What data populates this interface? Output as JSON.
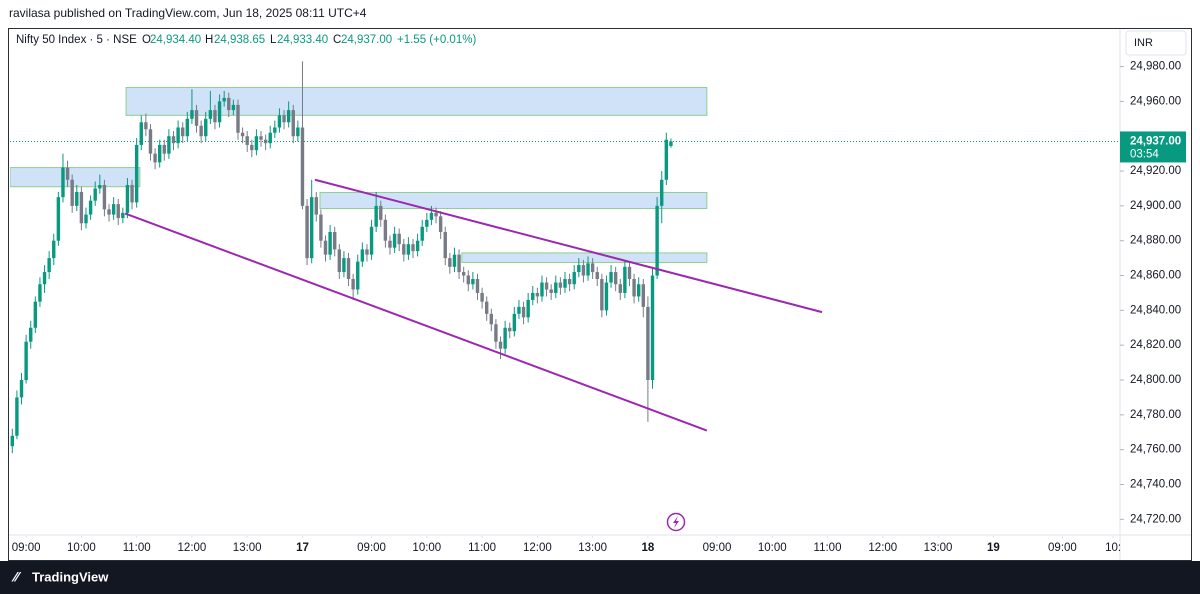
{
  "header": {
    "text": "ravilasa published on TradingView.com, Jun 18, 2025 08:11 UTC+4"
  },
  "footer": {
    "brand": "TradingView"
  },
  "chart_data": {
    "type": "candlestick",
    "legend": {
      "symbol": "Nifty 50 Index · 5 · NSE",
      "o": "O",
      "open": "24,934.40",
      "h": "H",
      "high": "24,938.65",
      "l": "L",
      "low": "24,933.40",
      "c": "C",
      "close": "24,937.00",
      "change": "+1.55 (+0.01%)"
    },
    "currency": "INR",
    "up_color": "#089981",
    "down_color": "#787b86",
    "xlim": [
      -0.5,
      240.5
    ],
    "xticks": [
      {
        "value": 3,
        "label": "09:00"
      },
      {
        "value": 15,
        "label": "10:00"
      },
      {
        "value": 27,
        "label": "11:00"
      },
      {
        "value": 39,
        "label": "12:00"
      },
      {
        "value": 51,
        "label": "13:00"
      },
      {
        "value": 63,
        "label": "17"
      },
      {
        "value": 78,
        "label": "09:00"
      },
      {
        "value": 90,
        "label": "10:00"
      },
      {
        "value": 102,
        "label": "11:00"
      },
      {
        "value": 114,
        "label": "12:00"
      },
      {
        "value": 126,
        "label": "13:00"
      },
      {
        "value": 138,
        "label": "18"
      },
      {
        "value": 153,
        "label": "09:00"
      },
      {
        "value": 165,
        "label": "10:00"
      },
      {
        "value": 177,
        "label": "11:00"
      },
      {
        "value": 189,
        "label": "12:00"
      },
      {
        "value": 201,
        "label": "13:00"
      },
      {
        "value": 213,
        "label": "19"
      },
      {
        "value": 228,
        "label": "09:00"
      },
      {
        "value": 239,
        "label": "10:"
      }
    ],
    "ylim": [
      24711,
      25001
    ],
    "yticks": [
      {
        "value": 24720,
        "label": "24,720.00"
      },
      {
        "value": 24740,
        "label": "24,740.00"
      },
      {
        "value": 24760,
        "label": "24,760.00"
      },
      {
        "value": 24780,
        "label": "24,780.00"
      },
      {
        "value": 24800,
        "label": "24,800.00"
      },
      {
        "value": 24820,
        "label": "24,820.00"
      },
      {
        "value": 24840,
        "label": "24,840.00"
      },
      {
        "value": 24860,
        "label": "24,860.00"
      },
      {
        "value": 24880,
        "label": "24,880.00"
      },
      {
        "value": 24900,
        "label": "24,900.00"
      },
      {
        "value": 24920,
        "label": "24,920.00"
      },
      {
        "value": 24960,
        "label": "24,960.00"
      },
      {
        "value": 24980,
        "label": "24,980.00"
      }
    ],
    "last_price": {
      "value": 24937,
      "label": "24,937.00",
      "countdown": "03:54",
      "color": "#089981"
    },
    "zones": [
      {
        "x": [
          24.7,
          150.8
        ],
        "y": [
          24952,
          24968
        ]
      },
      {
        "x": [
          -0.5,
          27.7
        ],
        "y": [
          24911,
          24922
        ]
      },
      {
        "x": [
          66.8,
          150.8
        ],
        "y": [
          24898.5,
          24907.7
        ]
      },
      {
        "x": [
          97.6,
          150.8
        ],
        "y": [
          24867.5,
          24873
        ]
      }
    ],
    "zone_fill": "#cfe2f8",
    "zone_stroke": "#8fcf8f",
    "trendlines": [
      {
        "x": [
          24.5,
          150.8
        ],
        "y": [
          24895.6,
          24771
        ]
      },
      {
        "x": [
          65.7,
          175.8
        ],
        "y": [
          24915,
          24839
        ]
      }
    ],
    "trend_color": "#9c27b0",
    "candles": [
      [
        24762,
        24772,
        24758,
        24768
      ],
      [
        24768,
        24794,
        24766,
        24790
      ],
      [
        24790,
        24804,
        24786,
        24800
      ],
      [
        24800,
        24826,
        24798,
        24822
      ],
      [
        24822,
        24834,
        24818,
        24830
      ],
      [
        24830,
        24848,
        24827,
        24845
      ],
      [
        24845,
        24859,
        24842,
        24855
      ],
      [
        24855,
        24866,
        24850,
        24862
      ],
      [
        24862,
        24874,
        24858,
        24870
      ],
      [
        24870,
        24884,
        24866,
        24880
      ],
      [
        24880,
        24908,
        24877,
        24905
      ],
      [
        24905,
        24930,
        24902,
        24922
      ],
      [
        24922,
        24926,
        24911,
        24915
      ],
      [
        24915,
        24918,
        24896,
        24900
      ],
      [
        24900,
        24912,
        24897,
        24908
      ],
      [
        24908,
        24911,
        24886,
        24890
      ],
      [
        24890,
        24899,
        24887,
        24895
      ],
      [
        24895,
        24906,
        24892,
        24903
      ],
      [
        24903,
        24914,
        24900,
        24910
      ],
      [
        24910,
        24918,
        24907,
        24912
      ],
      [
        24912,
        24915,
        24894,
        24898
      ],
      [
        24898,
        24901,
        24891,
        24895
      ],
      [
        24895,
        24905,
        24892,
        24901
      ],
      [
        24901,
        24904,
        24889,
        24893
      ],
      [
        24893,
        24899,
        24890,
        24896
      ],
      [
        24896,
        24916,
        24893,
        24912
      ],
      [
        24912,
        24915,
        24898,
        24902
      ],
      [
        24902,
        24939,
        24899,
        24935
      ],
      [
        24935,
        24952,
        24932,
        24948
      ],
      [
        24948,
        24953,
        24940,
        24944
      ],
      [
        24944,
        24947,
        24926,
        24930
      ],
      [
        24930,
        24933,
        24921,
        24925
      ],
      [
        24925,
        24938,
        24922,
        24935
      ],
      [
        24935,
        24938,
        24926,
        24930
      ],
      [
        24930,
        24944,
        24927,
        24940
      ],
      [
        24940,
        24943,
        24932,
        24936
      ],
      [
        24936,
        24949,
        24933,
        24945
      ],
      [
        24945,
        24948,
        24936,
        24940
      ],
      [
        24940,
        24954,
        24937,
        24950
      ],
      [
        24950,
        24967,
        24947,
        24955
      ],
      [
        24955,
        24958,
        24942,
        24946
      ],
      [
        24946,
        24949,
        24936,
        24940
      ],
      [
        24940,
        24954,
        24937,
        24950
      ],
      [
        24950,
        24966,
        24947,
        24955
      ],
      [
        24955,
        24958,
        24944,
        24948
      ],
      [
        24948,
        24964,
        24945,
        24960
      ],
      [
        24960,
        24966,
        24957,
        24962
      ],
      [
        24962,
        24965,
        24951,
        24955
      ],
      [
        24955,
        24961,
        24952,
        24958
      ],
      [
        24958,
        24961,
        24938,
        24942
      ],
      [
        24942,
        24945,
        24936,
        24940
      ],
      [
        24940,
        24943,
        24931,
        24935
      ],
      [
        24935,
        24938,
        24928,
        24932
      ],
      [
        24932,
        24944,
        24929,
        24940
      ],
      [
        24940,
        24943,
        24934,
        24938
      ],
      [
        24938,
        24941,
        24932,
        24936
      ],
      [
        24936,
        24946,
        24933,
        24942
      ],
      [
        24942,
        24949,
        24939,
        24945
      ],
      [
        24945,
        24956,
        24942,
        24952
      ],
      [
        24952,
        24955,
        24944,
        24948
      ],
      [
        24948,
        24960,
        24945,
        24955
      ],
      [
        24955,
        24958,
        24936,
        24940
      ],
      [
        24940,
        24949,
        24937,
        24945
      ],
      [
        24945,
        24983,
        24898,
        24900
      ],
      [
        24900,
        24904,
        24866,
        24870
      ],
      [
        24870,
        24915,
        24867,
        24905
      ],
      [
        24905,
        24908,
        24891,
        24895
      ],
      [
        24895,
        24898,
        24876,
        24880
      ],
      [
        24880,
        24883,
        24868,
        24872
      ],
      [
        24872,
        24889,
        24869,
        24885
      ],
      [
        24885,
        24888,
        24871,
        24875
      ],
      [
        24875,
        24878,
        24858,
        24862
      ],
      [
        24862,
        24874,
        24859,
        24870
      ],
      [
        24870,
        24873,
        24854,
        24858
      ],
      [
        24858,
        24861,
        24846,
        24852
      ],
      [
        24852,
        24872,
        24849,
        24868
      ],
      [
        24868,
        24879,
        24865,
        24875
      ],
      [
        24875,
        24878,
        24868,
        24872
      ],
      [
        24872,
        24892,
        24869,
        24888
      ],
      [
        24888,
        24908,
        24885,
        24900
      ],
      [
        24900,
        24903,
        24888,
        24892
      ],
      [
        24892,
        24895,
        24876,
        24880
      ],
      [
        24880,
        24883,
        24872,
        24876
      ],
      [
        24876,
        24888,
        24873,
        24884
      ],
      [
        24884,
        24887,
        24874,
        24878
      ],
      [
        24878,
        24881,
        24868,
        24872
      ],
      [
        24872,
        24882,
        24869,
        24878
      ],
      [
        24878,
        24881,
        24870,
        24874
      ],
      [
        24874,
        24884,
        24871,
        24880
      ],
      [
        24880,
        24892,
        24877,
        24888
      ],
      [
        24888,
        24896,
        24885,
        24892
      ],
      [
        24892,
        24900,
        24889,
        24896
      ],
      [
        24896,
        24899,
        24890,
        24894
      ],
      [
        24894,
        24897,
        24881,
        24885
      ],
      [
        24885,
        24888,
        24866,
        24870
      ],
      [
        24870,
        24873,
        24861,
        24865
      ],
      [
        24865,
        24876,
        24862,
        24872
      ],
      [
        24872,
        24875,
        24858,
        24862
      ],
      [
        24862,
        24865,
        24856,
        24860
      ],
      [
        24860,
        24863,
        24851,
        24855
      ],
      [
        24855,
        24862,
        24852,
        24858
      ],
      [
        24858,
        24861,
        24846,
        24850
      ],
      [
        24850,
        24853,
        24841,
        24845
      ],
      [
        24845,
        24848,
        24834,
        24838
      ],
      [
        24838,
        24841,
        24828,
        24832
      ],
      [
        24832,
        24835,
        24818,
        24822
      ],
      [
        24822,
        24825,
        24812,
        24818
      ],
      [
        24818,
        24834,
        24815,
        24830
      ],
      [
        24830,
        24833,
        24824,
        24828
      ],
      [
        24828,
        24842,
        24825,
        24838
      ],
      [
        24838,
        24846,
        24835,
        24842
      ],
      [
        24842,
        24845,
        24832,
        24836
      ],
      [
        24836,
        24850,
        24833,
        24846
      ],
      [
        24846,
        24854,
        24843,
        24850
      ],
      [
        24850,
        24853,
        24844,
        24848
      ],
      [
        24848,
        24860,
        24845,
        24856
      ],
      [
        24856,
        24859,
        24848,
        24852
      ],
      [
        24852,
        24855,
        24846,
        24850
      ],
      [
        24850,
        24860,
        24847,
        24856
      ],
      [
        24856,
        24859,
        24849,
        24853
      ],
      [
        24853,
        24862,
        24850,
        24858
      ],
      [
        24858,
        24861,
        24851,
        24855
      ],
      [
        24855,
        24866,
        24852,
        24862
      ],
      [
        24862,
        24870,
        24859,
        24866
      ],
      [
        24866,
        24869,
        24856,
        24860
      ],
      [
        24860,
        24871,
        24857,
        24867
      ],
      [
        24867,
        24870,
        24858,
        24862
      ],
      [
        24862,
        24865,
        24854,
        24858
      ],
      [
        24858,
        24861,
        24836,
        24840
      ],
      [
        24840,
        24860,
        24837,
        24856
      ],
      [
        24856,
        24866,
        24853,
        24862
      ],
      [
        24862,
        24865,
        24851,
        24855
      ],
      [
        24855,
        24858,
        24846,
        24850
      ],
      [
        24850,
        24869,
        24847,
        24865
      ],
      [
        24865,
        24868,
        24854,
        24858
      ],
      [
        24858,
        24861,
        24844,
        24848
      ],
      [
        24848,
        24859,
        24845,
        24855
      ],
      [
        24855,
        24858,
        24836,
        24842
      ],
      [
        24842,
        24848,
        24776,
        24800
      ],
      [
        24800,
        24865,
        24795,
        24860
      ],
      [
        24860,
        24905,
        24858,
        24900
      ],
      [
        24900,
        24920,
        24890,
        24915
      ],
      [
        24915,
        24942,
        24912,
        24938
      ],
      [
        24934.4,
        24938.65,
        24933.4,
        24937
      ]
    ]
  }
}
